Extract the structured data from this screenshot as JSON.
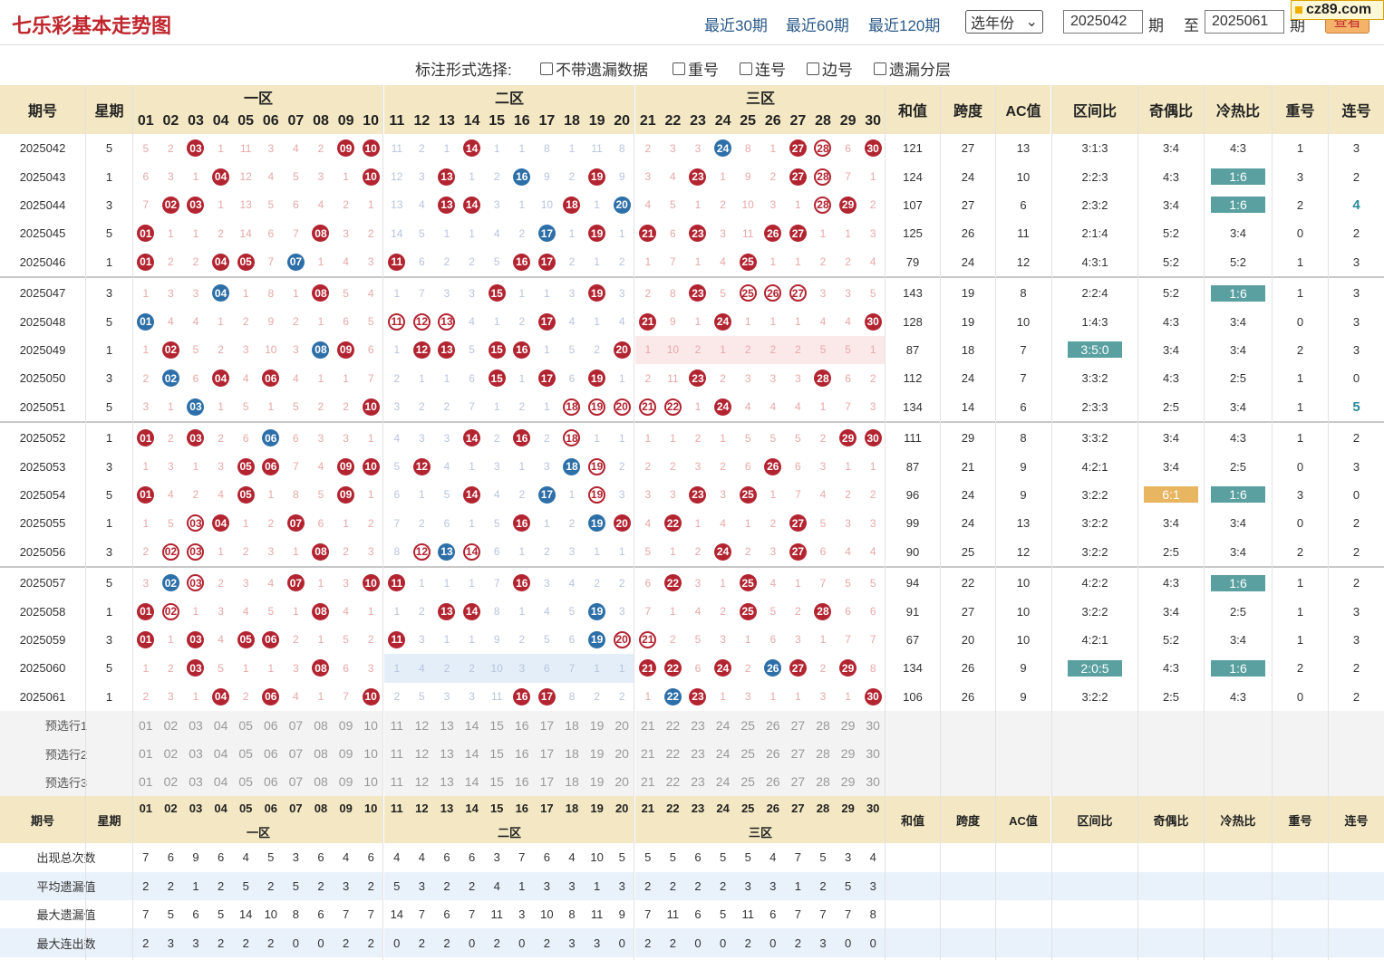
{
  "header": {
    "title": "七乐彩基本走势图",
    "links": [
      "最近30期",
      "最近60期",
      "最近120期"
    ],
    "year_select": "选年份",
    "start": "2025042",
    "start_unit": "期",
    "to": "至",
    "end": "2025061",
    "end_unit": "期",
    "view_button": "查看",
    "logo": "cz89.com"
  },
  "options": {
    "label": "标注形式选择:",
    "items": [
      "不带遗漏数据",
      "重号",
      "连号",
      "边号",
      "遗漏分层"
    ]
  },
  "columns": {
    "period": "期号",
    "weekday": "星期",
    "zone1": "一区",
    "zone2": "二区",
    "zone3": "三区",
    "sum": "和值",
    "span": "跨度",
    "ac": "AC值",
    "zone_ratio": "区间比",
    "odd_even": "奇偶比",
    "hot_cold": "冷热比",
    "repeat": "重号",
    "consec": "连号"
  },
  "numbers": [
    "01",
    "02",
    "03",
    "04",
    "05",
    "06",
    "07",
    "08",
    "09",
    "10",
    "11",
    "12",
    "13",
    "14",
    "15",
    "16",
    "17",
    "18",
    "19",
    "20",
    "21",
    "22",
    "23",
    "24",
    "25",
    "26",
    "27",
    "28",
    "29",
    "30"
  ],
  "rows": [
    {
      "p": "2025042",
      "w": "5",
      "m": [
        "5",
        "2",
        "*03",
        "1",
        "11",
        "3",
        "4",
        "2",
        "*09",
        "*10",
        "11",
        "2",
        "1",
        "*14",
        "1",
        "1",
        "8",
        "1",
        "11",
        "8",
        "2",
        "3",
        "3",
        "b24",
        "8",
        "1",
        "*27",
        "r28",
        "6",
        "*30"
      ],
      "s": "121",
      "sp": "27",
      "ac": "13",
      "zr": "3:1:3",
      "oe": "3:4",
      "hc": "4:3",
      "rp": "1",
      "cs": "3"
    },
    {
      "p": "2025043",
      "w": "1",
      "m": [
        "6",
        "3",
        "1",
        "*04",
        "12",
        "4",
        "5",
        "3",
        "1",
        "*10",
        "12",
        "3",
        "*13",
        "1",
        "2",
        "b16",
        "9",
        "2",
        "*19",
        "9",
        "3",
        "4",
        "*23",
        "1",
        "9",
        "2",
        "*27",
        "r28",
        "7",
        "1"
      ],
      "s": "124",
      "sp": "24",
      "ac": "10",
      "zr": "2:2:3",
      "oe": "4:3",
      "hc": "g1:6",
      "rp": "3",
      "cs": "2"
    },
    {
      "p": "2025044",
      "w": "3",
      "m": [
        "7",
        "*02",
        "*03",
        "1",
        "13",
        "5",
        "6",
        "4",
        "2",
        "1",
        "13",
        "4",
        "*13",
        "*14",
        "3",
        "1",
        "10",
        "*18",
        "1",
        "b20",
        "4",
        "5",
        "1",
        "2",
        "10",
        "3",
        "1",
        "r28",
        "*29",
        "2"
      ],
      "s": "107",
      "sp": "27",
      "ac": "6",
      "zr": "2:3:2",
      "oe": "3:4",
      "hc": "g1:6",
      "rp": "2",
      "cs": "t4"
    },
    {
      "p": "2025045",
      "w": "5",
      "m": [
        "*01",
        "1",
        "1",
        "2",
        "14",
        "6",
        "7",
        "*08",
        "3",
        "2",
        "14",
        "5",
        "1",
        "1",
        "4",
        "2",
        "b17",
        "1",
        "*19",
        "1",
        "*21",
        "6",
        "*23",
        "3",
        "11",
        "*26",
        "*27",
        "1",
        "1",
        "3"
      ],
      "s": "125",
      "sp": "26",
      "ac": "11",
      "zr": "2:1:4",
      "oe": "5:2",
      "hc": "3:4",
      "rp": "0",
      "cs": "2"
    },
    {
      "p": "2025046",
      "w": "1",
      "m": [
        "*01",
        "2",
        "2",
        "*04",
        "*05",
        "7",
        "b07",
        "1",
        "4",
        "3",
        "*11",
        "6",
        "2",
        "2",
        "5",
        "*16",
        "*17",
        "2",
        "1",
        "2",
        "1",
        "7",
        "1",
        "4",
        "*25",
        "1",
        "1",
        "2",
        "2",
        "4"
      ],
      "s": "79",
      "sp": "24",
      "ac": "12",
      "zr": "4:3:1",
      "oe": "5:2",
      "hc": "5:2",
      "rp": "1",
      "cs": "3"
    },
    {
      "p": "2025047",
      "w": "3",
      "m": [
        "1",
        "3",
        "3",
        "b04",
        "1",
        "8",
        "1",
        "*08",
        "5",
        "4",
        "1",
        "7",
        "3",
        "3",
        "*15",
        "1",
        "1",
        "3",
        "*19",
        "3",
        "2",
        "8",
        "*23",
        "5",
        "r25",
        "r26",
        "r27",
        "3",
        "3",
        "5"
      ],
      "s": "143",
      "sp": "19",
      "ac": "8",
      "zr": "2:2:4",
      "oe": "5:2",
      "hc": "g1:6",
      "rp": "1",
      "cs": "3"
    },
    {
      "p": "2025048",
      "w": "5",
      "m": [
        "b01",
        "4",
        "4",
        "1",
        "2",
        "9",
        "2",
        "1",
        "6",
        "5",
        "r11",
        "r12",
        "r13",
        "4",
        "1",
        "2",
        "*17",
        "4",
        "1",
        "4",
        "*21",
        "9",
        "1",
        "*24",
        "1",
        "1",
        "1",
        "4",
        "4",
        "*30"
      ],
      "s": "128",
      "sp": "19",
      "ac": "10",
      "zr": "1:4:3",
      "oe": "4:3",
      "hc": "3:4",
      "rp": "0",
      "cs": "3"
    },
    {
      "p": "2025049",
      "w": "1",
      "m": [
        "1",
        "*02",
        "5",
        "2",
        "3",
        "10",
        "3",
        "b08",
        "*09",
        "6",
        "1",
        "*12",
        "*13",
        "5",
        "*15",
        "*16",
        "1",
        "5",
        "2",
        "*20",
        "p1",
        "p10",
        "p2",
        "p1",
        "p2",
        "p2",
        "p2",
        "p5",
        "p5",
        "p1"
      ],
      "s": "87",
      "sp": "18",
      "ac": "7",
      "zr": "g3:5:0",
      "oe": "3:4",
      "hc": "3:4",
      "rp": "2",
      "cs": "3"
    },
    {
      "p": "2025050",
      "w": "3",
      "m": [
        "2",
        "b02",
        "6",
        "*04",
        "4",
        "*06",
        "4",
        "1",
        "1",
        "7",
        "2",
        "1",
        "1",
        "6",
        "*15",
        "1",
        "*17",
        "6",
        "*19",
        "1",
        "2",
        "11",
        "*23",
        "2",
        "3",
        "3",
        "3",
        "*28",
        "6",
        "2"
      ],
      "s": "112",
      "sp": "24",
      "ac": "7",
      "zr": "3:3:2",
      "oe": "4:3",
      "hc": "2:5",
      "rp": "1",
      "cs": "0"
    },
    {
      "p": "2025051",
      "w": "5",
      "m": [
        "3",
        "1",
        "b03",
        "1",
        "5",
        "1",
        "5",
        "2",
        "2",
        "*10",
        "3",
        "2",
        "2",
        "7",
        "1",
        "2",
        "1",
        "r18",
        "r19",
        "r20",
        "r21",
        "r22",
        "1",
        "*24",
        "4",
        "4",
        "4",
        "1",
        "7",
        "3"
      ],
      "s": "134",
      "sp": "14",
      "ac": "6",
      "zr": "2:3:3",
      "oe": "2:5",
      "hc": "3:4",
      "rp": "1",
      "cs": "t5"
    },
    {
      "p": "2025052",
      "w": "1",
      "m": [
        "*01",
        "2",
        "*03",
        "2",
        "6",
        "b06",
        "6",
        "3",
        "3",
        "1",
        "4",
        "3",
        "3",
        "*14",
        "2",
        "*16",
        "2",
        "r18",
        "1",
        "1",
        "1",
        "1",
        "2",
        "1",
        "5",
        "5",
        "5",
        "2",
        "*29",
        "*30"
      ],
      "s": "111",
      "sp": "29",
      "ac": "8",
      "zr": "3:3:2",
      "oe": "3:4",
      "hc": "4:3",
      "rp": "1",
      "cs": "2"
    },
    {
      "p": "2025053",
      "w": "3",
      "m": [
        "1",
        "3",
        "1",
        "3",
        "*05",
        "*06",
        "7",
        "4",
        "*09",
        "*10",
        "5",
        "*12",
        "4",
        "1",
        "3",
        "1",
        "3",
        "b18",
        "r19",
        "2",
        "2",
        "2",
        "3",
        "2",
        "6",
        "*26",
        "6",
        "3",
        "1",
        "1"
      ],
      "s": "87",
      "sp": "21",
      "ac": "9",
      "zr": "4:2:1",
      "oe": "3:4",
      "hc": "2:5",
      "rp": "0",
      "cs": "3"
    },
    {
      "p": "2025054",
      "w": "5",
      "m": [
        "*01",
        "4",
        "2",
        "4",
        "*05",
        "1",
        "8",
        "5",
        "*09",
        "1",
        "6",
        "1",
        "5",
        "*14",
        "4",
        "2",
        "b17",
        "1",
        "r19",
        "3",
        "3",
        "3",
        "*23",
        "3",
        "*25",
        "1",
        "7",
        "4",
        "2",
        "2"
      ],
      "s": "96",
      "sp": "24",
      "ac": "9",
      "zr": "3:2:2",
      "oe": "o6:1",
      "hc": "g1:6",
      "rp": "3",
      "cs": "0"
    },
    {
      "p": "2025055",
      "w": "1",
      "m": [
        "1",
        "5",
        "r03",
        "*04",
        "1",
        "2",
        "*07",
        "6",
        "1",
        "2",
        "7",
        "2",
        "6",
        "1",
        "5",
        "*16",
        "1",
        "2",
        "b19",
        "*20",
        "4",
        "*22",
        "1",
        "4",
        "1",
        "2",
        "*27",
        "5",
        "3",
        "3"
      ],
      "s": "99",
      "sp": "24",
      "ac": "13",
      "zr": "3:2:2",
      "oe": "3:4",
      "hc": "3:4",
      "rp": "0",
      "cs": "2"
    },
    {
      "p": "2025056",
      "w": "3",
      "m": [
        "2",
        "r02",
        "r03",
        "1",
        "2",
        "3",
        "1",
        "*08",
        "2",
        "3",
        "8",
        "r12",
        "b13",
        "r14",
        "6",
        "1",
        "2",
        "3",
        "1",
        "1",
        "5",
        "1",
        "2",
        "*24",
        "2",
        "3",
        "*27",
        "6",
        "4",
        "4"
      ],
      "s": "90",
      "sp": "25",
      "ac": "12",
      "zr": "3:2:2",
      "oe": "2:5",
      "hc": "3:4",
      "rp": "2",
      "cs": "2"
    },
    {
      "p": "2025057",
      "w": "5",
      "m": [
        "3",
        "b02",
        "r03",
        "2",
        "3",
        "4",
        "*07",
        "1",
        "3",
        "*10",
        "*11",
        "1",
        "1",
        "1",
        "7",
        "*16",
        "3",
        "4",
        "2",
        "2",
        "6",
        "*22",
        "3",
        "1",
        "*25",
        "4",
        "1",
        "7",
        "5",
        "5"
      ],
      "s": "94",
      "sp": "22",
      "ac": "10",
      "zr": "4:2:2",
      "oe": "4:3",
      "hc": "g1:6",
      "rp": "1",
      "cs": "2"
    },
    {
      "p": "2025058",
      "w": "1",
      "m": [
        "*01",
        "r02",
        "1",
        "3",
        "4",
        "5",
        "1",
        "*08",
        "4",
        "1",
        "1",
        "2",
        "*13",
        "*14",
        "8",
        "1",
        "4",
        "5",
        "b19",
        "3",
        "7",
        "1",
        "4",
        "2",
        "*25",
        "5",
        "2",
        "*28",
        "6",
        "6"
      ],
      "s": "91",
      "sp": "27",
      "ac": "10",
      "zr": "3:2:2",
      "oe": "3:4",
      "hc": "2:5",
      "rp": "1",
      "cs": "3"
    },
    {
      "p": "2025059",
      "w": "3",
      "m": [
        "*01",
        "1",
        "*03",
        "4",
        "*05",
        "*06",
        "2",
        "1",
        "5",
        "2",
        "*11",
        "3",
        "1",
        "1",
        "9",
        "2",
        "5",
        "6",
        "b19",
        "r20",
        "r21",
        "2",
        "5",
        "3",
        "1",
        "6",
        "3",
        "1",
        "7",
        "7"
      ],
      "s": "67",
      "sp": "20",
      "ac": "10",
      "zr": "4:2:1",
      "oe": "5:2",
      "hc": "3:4",
      "rp": "1",
      "cs": "3"
    },
    {
      "p": "2025060",
      "w": "5",
      "m": [
        "1",
        "2",
        "*03",
        "5",
        "1",
        "1",
        "3",
        "*08",
        "6",
        "3",
        "q1",
        "q4",
        "q2",
        "q2",
        "q10",
        "q3",
        "q6",
        "q7",
        "q1",
        "q1",
        "*21",
        "*22",
        "6",
        "*24",
        "2",
        "b26",
        "*27",
        "2",
        "*29",
        "8"
      ],
      "s": "134",
      "sp": "26",
      "ac": "9",
      "zr": "g2:0:5",
      "oe": "4:3",
      "hc": "g1:6",
      "rp": "2",
      "cs": "2"
    },
    {
      "p": "2025061",
      "w": "1",
      "m": [
        "2",
        "3",
        "1",
        "*04",
        "2",
        "*06",
        "4",
        "1",
        "7",
        "*10",
        "2",
        "5",
        "3",
        "3",
        "11",
        "*16",
        "*17",
        "8",
        "2",
        "2",
        "1",
        "b22",
        "*23",
        "1",
        "3",
        "1",
        "1",
        "3",
        "1",
        "*30"
      ],
      "s": "106",
      "sp": "26",
      "ac": "9",
      "zr": "3:2:2",
      "oe": "2:5",
      "hc": "4:3",
      "rp": "0",
      "cs": "2"
    }
  ],
  "preselect": [
    "预选行1",
    "预选行2",
    "预选行3"
  ],
  "stats": [
    {
      "label": "出现总次数",
      "v": [
        "7",
        "6",
        "9",
        "6",
        "4",
        "5",
        "3",
        "6",
        "4",
        "6",
        "4",
        "4",
        "6",
        "6",
        "3",
        "7",
        "6",
        "4",
        "10",
        "5",
        "5",
        "5",
        "6",
        "5",
        "5",
        "4",
        "7",
        "5",
        "3",
        "4"
      ]
    },
    {
      "label": "平均遗漏值",
      "v": [
        "2",
        "2",
        "1",
        "2",
        "5",
        "2",
        "5",
        "2",
        "3",
        "2",
        "5",
        "3",
        "2",
        "2",
        "4",
        "1",
        "3",
        "3",
        "1",
        "3",
        "2",
        "2",
        "2",
        "2",
        "3",
        "3",
        "1",
        "2",
        "5",
        "3"
      ]
    },
    {
      "label": "最大遗漏值",
      "v": [
        "7",
        "5",
        "6",
        "5",
        "14",
        "10",
        "8",
        "6",
        "7",
        "7",
        "14",
        "7",
        "6",
        "7",
        "11",
        "3",
        "10",
        "8",
        "11",
        "9",
        "7",
        "11",
        "6",
        "5",
        "11",
        "6",
        "7",
        "7",
        "7",
        "8"
      ]
    },
    {
      "label": "最大连出数",
      "v": [
        "2",
        "3",
        "3",
        "2",
        "2",
        "2",
        "0",
        "0",
        "2",
        "2",
        "0",
        "2",
        "2",
        "0",
        "2",
        "0",
        "2",
        "3",
        "3",
        "0",
        "2",
        "2",
        "0",
        "0",
        "2",
        "0",
        "2",
        "3",
        "0",
        "0"
      ]
    }
  ]
}
